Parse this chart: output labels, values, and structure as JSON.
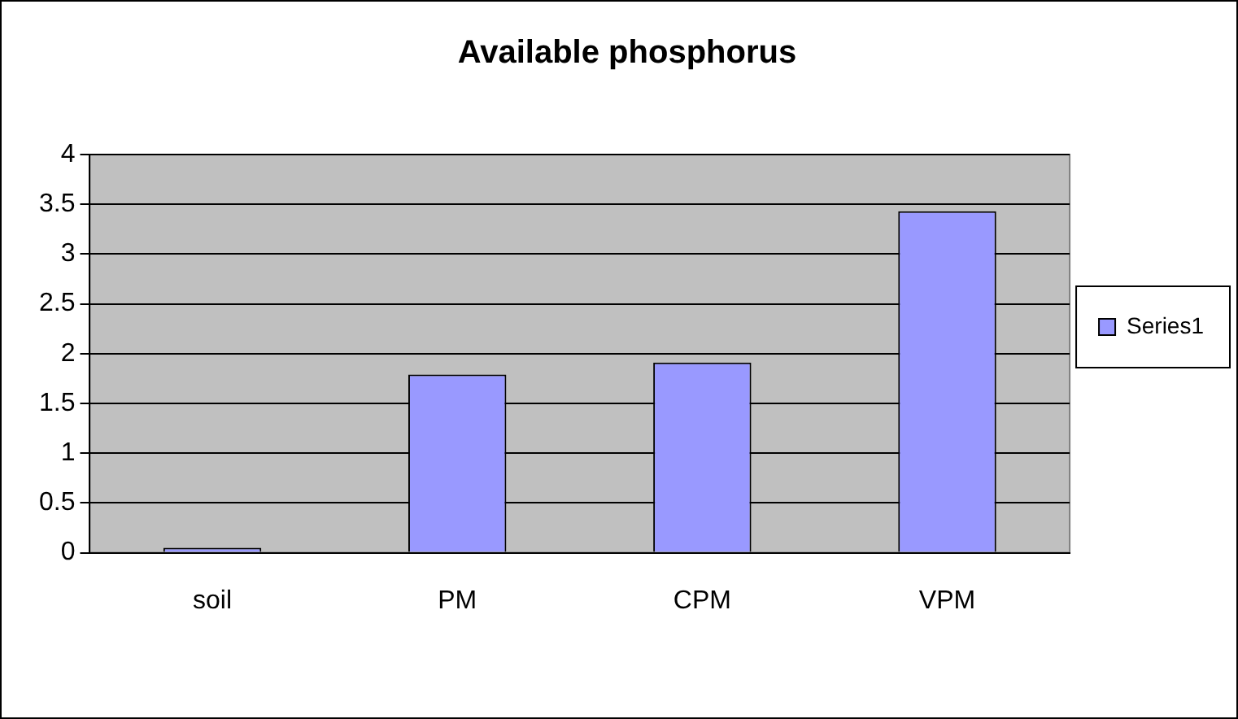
{
  "chart_data": {
    "type": "bar",
    "title": "Available phosphorus",
    "categories": [
      "soil",
      "PM",
      "CPM",
      "VPM"
    ],
    "series": [
      {
        "name": "Series1",
        "color": "#9999ff",
        "values": [
          0.05,
          1.79,
          1.91,
          3.43
        ]
      }
    ],
    "ylim": [
      0,
      4
    ],
    "yticks": [
      0,
      0.5,
      1,
      1.5,
      2,
      2.5,
      3,
      3.5,
      4
    ],
    "grid": "y",
    "legend": "right"
  }
}
